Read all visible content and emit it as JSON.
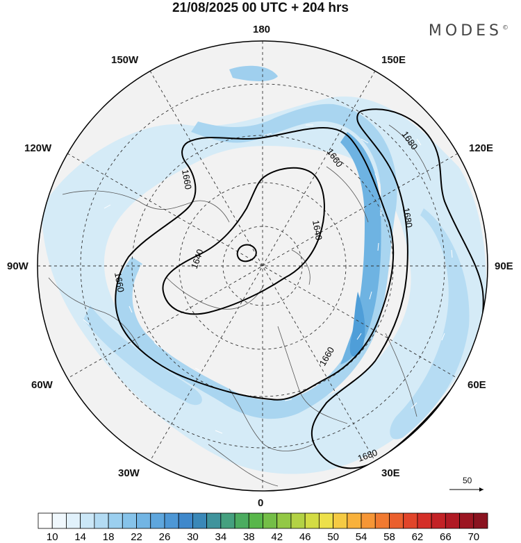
{
  "header": {
    "title": "21/08/2025  00 UTC  + 204 hrs",
    "brand": "MODES",
    "brand_mark": "©"
  },
  "map": {
    "projection": "north polar stereographic",
    "longitude_labels": {
      "top": "180",
      "bottom": "0",
      "left": "90W",
      "right": "90E",
      "upper_left_1": "150W",
      "upper_left_2": "120W",
      "upper_right_1": "150E",
      "upper_right_2": "120E",
      "lower_left_1": "60W",
      "lower_left_2": "30W",
      "lower_right_1": "60E",
      "lower_right_2": "30E"
    },
    "contour_labels": [
      "1680",
      "1680",
      "1680",
      "1660",
      "1660",
      "1660",
      "1640",
      "1640",
      "1660"
    ],
    "reference_vector": "50",
    "colors": {
      "land": "#f2f2f2",
      "coast": "#555555",
      "contour": "#000000",
      "shade_light": "#cde7f5",
      "shade_mid": "#8ec8ec",
      "shade_dark": "#4f9ed8"
    }
  },
  "colorbar": {
    "tick_labels": [
      "10",
      "14",
      "18",
      "22",
      "26",
      "30",
      "34",
      "38",
      "42",
      "46",
      "50",
      "54",
      "58",
      "62",
      "66",
      "70"
    ],
    "colors": [
      "#ffffff",
      "#f0f8fd",
      "#e1f1fb",
      "#cbe7f7",
      "#b3dbf3",
      "#9bcfef",
      "#86c3ea",
      "#72b5e4",
      "#5ea6dd",
      "#4d97d5",
      "#3f88cb",
      "#3a88b8",
      "#3f939c",
      "#45a07f",
      "#4cac60",
      "#58b64a",
      "#74be47",
      "#93c845",
      "#b3d244",
      "#d3dc44",
      "#ede04a",
      "#f5ca43",
      "#f8b13c",
      "#f69636",
      "#f17a31",
      "#ea5f2d",
      "#e1452a",
      "#d42f28",
      "#c32226",
      "#b01a24",
      "#9c1622",
      "#8a1320"
    ]
  }
}
